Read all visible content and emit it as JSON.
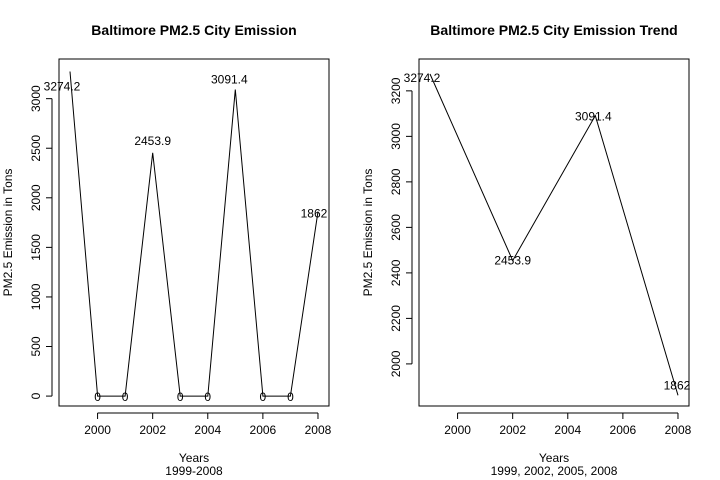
{
  "chart_data": [
    {
      "type": "line",
      "title": "Baltimore PM2.5 City Emission",
      "xlabel": "Years",
      "subtitle": "1999-2008",
      "ylabel": "PM2.5 Emission in Tons",
      "x": [
        1999,
        2000,
        2001,
        2002,
        2003,
        2004,
        2005,
        2006,
        2007,
        2008
      ],
      "values": [
        3274.2,
        0,
        0,
        2453.9,
        0,
        0,
        3091.4,
        0,
        0,
        1862
      ],
      "point_labels": [
        "3274.2",
        "0",
        "0",
        "2453.9",
        "0",
        "0",
        "3091.4",
        "0",
        "0",
        "1862"
      ],
      "xlim": [
        1998.6,
        2008.4
      ],
      "ylim": [
        -100,
        3400
      ],
      "xticks": [
        2000,
        2002,
        2004,
        2006,
        2008
      ],
      "xtick_labels": [
        "2000",
        "2002",
        "2004",
        "2006",
        "2008"
      ],
      "yticks": [
        0,
        500,
        1000,
        1500,
        2000,
        2500,
        3000
      ],
      "ytick_labels": [
        "0",
        "500",
        "1000",
        "1500",
        "2000",
        "2500",
        "3000"
      ],
      "grid": false,
      "line_color": "#000000"
    },
    {
      "type": "line",
      "title": "Baltimore PM2.5 City Emission Trend",
      "xlabel": "Years",
      "subtitle": "1999, 2002, 2005, 2008",
      "ylabel": "PM2.5 Emission in Tons",
      "x": [
        1999,
        2002,
        2005,
        2008
      ],
      "values": [
        3274.2,
        2453.9,
        3091.4,
        1862
      ],
      "point_labels": [
        "3274.2",
        "2453.9",
        "3091.4",
        "1862"
      ],
      "xlim": [
        1998.6,
        2008.4
      ],
      "ylim": [
        1815,
        3340
      ],
      "xticks": [
        2000,
        2002,
        2004,
        2006,
        2008
      ],
      "xtick_labels": [
        "2000",
        "2002",
        "2004",
        "2006",
        "2008"
      ],
      "yticks": [
        2000,
        2200,
        2400,
        2600,
        2800,
        3000,
        3200
      ],
      "ytick_labels": [
        "2000",
        "2200",
        "2400",
        "2600",
        "2800",
        "3000",
        "3200"
      ],
      "grid": false,
      "line_color": "#000000"
    }
  ]
}
